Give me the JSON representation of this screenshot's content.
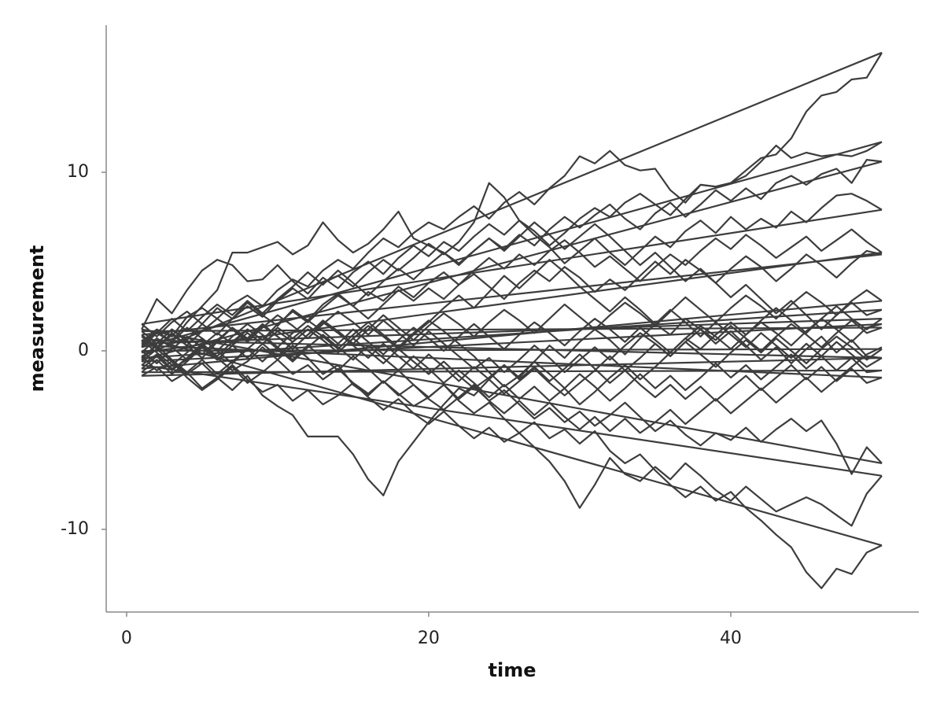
{
  "chart_data": {
    "type": "line",
    "x_label": "time",
    "y_label": "measurement",
    "color": "#3d3d3d",
    "xlim": [
      -1.35,
      52.45
    ],
    "xticks": [
      0,
      20,
      40
    ],
    "ylim": [
      -14.63,
      18.24
    ],
    "yticks": [
      -10,
      0,
      10
    ],
    "x": [
      1,
      2,
      3,
      4,
      5,
      6,
      7,
      8,
      9,
      10,
      11,
      12,
      13,
      14,
      15,
      16,
      17,
      18,
      19,
      20,
      21,
      22,
      23,
      24,
      25,
      26,
      27,
      28,
      29,
      30,
      31,
      32,
      33,
      34,
      35,
      36,
      37,
      38,
      39,
      40,
      41,
      42,
      43,
      44,
      45,
      46,
      47,
      48,
      49,
      50
    ],
    "series": [
      {
        "values": [
          0.5,
          1.2,
          0.8,
          1.9,
          2.4,
          1.8,
          2.6,
          3.1,
          2.5,
          3.4,
          4.0,
          3.6,
          4.5,
          5.1,
          4.6,
          5.5,
          6.3,
          5.8,
          6.6,
          7.2,
          6.8,
          7.5,
          8.1,
          7.4,
          8.3,
          8.9,
          8.2,
          9.1,
          9.8,
          10.9,
          10.5,
          11.2,
          10.4,
          10.1,
          10.2,
          9.0,
          8.3,
          9.3,
          9.2,
          9.4,
          10.1,
          10.8,
          11.0,
          11.9,
          13.4,
          14.3,
          14.5,
          15.2,
          15.3,
          16.7
        ]
      },
      {
        "values": [
          -0.3,
          -1.1,
          -0.6,
          -1.5,
          -2.2,
          -1.6,
          -0.9,
          -1.8,
          -1.2,
          -0.5,
          0.3,
          -0.4,
          -1.3,
          -0.8,
          -1.9,
          -2.5,
          -1.7,
          -2.4,
          -3.1,
          -2.6,
          -1.9,
          -2.8,
          -3.5,
          -2.9,
          -3.8,
          -4.6,
          -4.0,
          -4.9,
          -4.4,
          -5.2,
          -4.5,
          -5.6,
          -6.3,
          -5.8,
          -6.7,
          -7.5,
          -8.2,
          -7.6,
          -8.4,
          -7.9,
          -8.8,
          -9.5,
          -10.3,
          -11.0,
          -12.4,
          -13.3,
          -12.2,
          -12.5,
          -11.3,
          -10.9
        ]
      },
      {
        "values": [
          0.8,
          0.1,
          -0.6,
          -1.3,
          -0.7,
          -1.5,
          -2.2,
          -1.4,
          -2.5,
          -3.1,
          -3.6,
          -4.8,
          -4.8,
          -4.8,
          -5.8,
          -7.2,
          -8.1,
          -6.2,
          -5.1,
          -4.0,
          -3.0,
          -2.1,
          -2.5,
          -1.6,
          -0.8,
          -1.5,
          -0.6,
          0.3,
          -0.4,
          0.5,
          1.2,
          0.6,
          -0.2,
          0.7,
          1.5,
          0.9,
          1.8,
          1.2,
          0.4,
          1.1,
          0.3,
          -0.5,
          0.2,
          -0.7,
          0.1,
          0.8,
          -0.1,
          0.6,
          -0.3,
          -0.4
        ]
      },
      {
        "values": [
          -1.4,
          -0.9,
          -1.7,
          -1.2,
          -2.1,
          -1.5,
          -0.8,
          -1.6,
          -2.3,
          -1.9,
          -2.8,
          -2.2,
          -3.0,
          -2.5,
          -1.8,
          -2.6,
          -3.3,
          -2.7,
          -3.5,
          -4.1,
          -3.4,
          -4.2,
          -4.9,
          -4.3,
          -5.1,
          -4.6,
          -5.4,
          -6.2,
          -7.3,
          -8.8,
          -7.5,
          -6.0,
          -6.9,
          -7.3,
          -6.5,
          -7.2,
          -6.3,
          -7.0,
          -7.8,
          -8.4,
          -7.6,
          -8.3,
          -9.0,
          -8.6,
          -8.2,
          -8.6,
          -9.2,
          -9.8,
          -8.0,
          -7.0
        ]
      },
      {
        "values": [
          -0.8,
          -0.2,
          -1.0,
          -0.5,
          0.3,
          -0.4,
          -1.1,
          -0.6,
          0.2,
          -0.5,
          -1.3,
          -0.8,
          -1.6,
          -1.0,
          -1.8,
          -2.4,
          -1.7,
          -2.5,
          -1.9,
          -2.7,
          -3.3,
          -2.6,
          -1.9,
          -2.8,
          -2.2,
          -3.0,
          -3.8,
          -3.2,
          -4.0,
          -3.4,
          -4.2,
          -3.6,
          -2.9,
          -3.7,
          -4.5,
          -3.9,
          -4.7,
          -5.3,
          -4.6,
          -5.0,
          -4.3,
          -5.1,
          -4.4,
          -3.8,
          -4.5,
          -3.9,
          -5.2,
          -6.9,
          -5.4,
          -6.3
        ]
      },
      {
        "values": [
          1.2,
          2.9,
          2.1,
          3.4,
          4.5,
          5.1,
          4.8,
          3.9,
          4.0,
          4.8,
          3.9,
          3.2,
          4.1,
          3.5,
          4.4,
          5.0,
          4.3,
          5.2,
          5.9,
          5.3,
          6.1,
          5.6,
          6.4,
          7.1,
          6.5,
          7.3,
          6.7,
          5.9,
          6.6,
          7.4,
          8.0,
          7.5,
          8.3,
          8.8,
          8.2,
          7.6,
          8.5,
          9.3,
          9.2,
          9.4,
          9.8,
          10.6,
          11.5,
          10.8,
          11.1,
          10.9,
          11.0,
          10.9,
          11.2,
          11.7
        ]
      },
      {
        "values": [
          0.2,
          1.0,
          0.5,
          1.6,
          2.5,
          3.4,
          5.5,
          5.5,
          5.8,
          6.1,
          5.4,
          5.9,
          7.2,
          6.2,
          5.5,
          6.0,
          6.8,
          7.8,
          6.3,
          5.9,
          5.5,
          4.9,
          5.6,
          6.3,
          5.7,
          6.5,
          5.9,
          6.8,
          7.5,
          6.9,
          7.6,
          8.2,
          7.4,
          6.8,
          7.7,
          8.3,
          7.5,
          8.2,
          9.0,
          8.4,
          9.1,
          8.5,
          9.4,
          9.8,
          9.3,
          9.9,
          10.2,
          9.4,
          10.7,
          10.6
        ]
      },
      {
        "values": [
          -0.5,
          0.4,
          1.2,
          0.6,
          1.5,
          0.9,
          1.8,
          2.5,
          1.9,
          2.8,
          3.5,
          2.9,
          3.8,
          4.2,
          3.6,
          4.4,
          5.1,
          4.5,
          5.2,
          6.0,
          5.4,
          6.1,
          7.2,
          9.4,
          8.6,
          7.3,
          6.5,
          5.8,
          4.9,
          5.6,
          6.3,
          5.5,
          4.8,
          5.6,
          6.4,
          5.8,
          6.7,
          7.3,
          6.6,
          7.5,
          6.8,
          7.4,
          6.9,
          7.8,
          7.2,
          8.0,
          8.7,
          8.8,
          8.4,
          7.9
        ]
      },
      {
        "values": [
          1.5,
          0.8,
          1.6,
          2.2,
          1.5,
          2.4,
          1.8,
          2.7,
          2.0,
          1.4,
          2.3,
          1.7,
          2.6,
          3.2,
          2.5,
          3.3,
          2.8,
          3.6,
          3.0,
          3.8,
          4.4,
          3.7,
          4.5,
          5.2,
          4.6,
          5.4,
          4.8,
          5.6,
          6.2,
          5.5,
          4.7,
          5.3,
          4.6,
          3.9,
          4.7,
          5.4,
          4.8,
          5.6,
          6.3,
          5.7,
          6.5,
          5.9,
          5.2,
          5.8,
          6.4,
          5.6,
          6.2,
          6.8,
          6.1,
          5.5
        ]
      },
      {
        "values": [
          -0.1,
          0.7,
          0.2,
          -0.5,
          0.3,
          1.0,
          0.4,
          1.2,
          0.6,
          1.5,
          2.2,
          1.6,
          2.4,
          3.1,
          2.5,
          1.8,
          2.6,
          3.4,
          2.8,
          3.5,
          2.9,
          3.7,
          4.3,
          3.6,
          2.9,
          3.8,
          4.5,
          3.9,
          4.7,
          4.1,
          3.3,
          4.0,
          3.4,
          4.2,
          5.0,
          4.3,
          5.1,
          4.5,
          3.8,
          4.6,
          5.3,
          4.7,
          3.9,
          4.6,
          5.4,
          4.8,
          4.1,
          4.9,
          5.6,
          5.4
        ]
      },
      {
        "values": [
          0.9,
          0.2,
          1.0,
          0.3,
          -0.4,
          0.5,
          1.3,
          0.6,
          1.4,
          0.8,
          0.1,
          0.9,
          1.7,
          1.1,
          0.4,
          1.2,
          2.0,
          1.3,
          0.6,
          1.4,
          2.1,
          1.5,
          0.8,
          1.6,
          2.3,
          1.7,
          1.0,
          1.8,
          2.6,
          1.9,
          1.2,
          2.0,
          2.7,
          2.1,
          1.4,
          2.2,
          3.0,
          2.3,
          1.6,
          2.4,
          3.1,
          2.5,
          1.8,
          2.6,
          3.3,
          2.7,
          2.0,
          2.8,
          3.4,
          2.8
        ]
      },
      {
        "values": [
          -1.0,
          -0.3,
          -1.1,
          -0.4,
          0.4,
          -0.3,
          0.5,
          1.2,
          0.6,
          1.3,
          0.7,
          1.4,
          0.8,
          0.1,
          0.9,
          1.6,
          0.9,
          0.2,
          1.0,
          1.7,
          1.1,
          0.4,
          -0.3,
          -1.2,
          -2.0,
          -1.4,
          -0.6,
          -1.3,
          -2.1,
          -3.0,
          -2.3,
          -1.5,
          -0.8,
          -1.6,
          -0.9,
          -0.1,
          0.7,
          0.1,
          0.9,
          1.6,
          0.9,
          1.7,
          2.4,
          1.7,
          1.0,
          1.8,
          2.5,
          1.8,
          1.2,
          1.8
        ]
      },
      {
        "values": [
          0.4,
          1.1,
          0.5,
          1.3,
          0.7,
          0.0,
          0.8,
          1.5,
          0.9,
          0.2,
          1.0,
          1.7,
          1.1,
          0.4,
          1.2,
          0.5,
          -0.2,
          0.6,
          1.3,
          0.7,
          0.0,
          0.8,
          1.5,
          0.8,
          0.1,
          0.9,
          1.6,
          1.0,
          0.3,
          1.1,
          1.8,
          1.2,
          0.5,
          1.3,
          0.6,
          -0.1,
          0.7,
          1.4,
          0.8,
          0.1,
          0.9,
          1.6,
          1.0,
          0.3,
          1.1,
          1.8,
          1.2,
          0.5,
          1.3,
          1.5
        ]
      },
      {
        "values": [
          -0.6,
          0.1,
          0.9,
          0.3,
          1.1,
          1.8,
          1.2,
          0.5,
          1.3,
          2.0,
          1.4,
          0.7,
          1.5,
          2.2,
          1.6,
          0.9,
          1.7,
          1.0,
          0.3,
          1.1,
          0.4,
          -0.3,
          -1.0,
          -0.4,
          -1.2,
          -0.5,
          0.3,
          -0.4,
          -1.2,
          -0.5,
          0.2,
          -0.5,
          0.3,
          1.0,
          0.4,
          -0.3,
          0.5,
          1.2,
          0.6,
          1.4,
          0.7,
          0.0,
          0.8,
          1.5,
          0.9,
          0.2,
          1.0,
          1.7,
          1.0,
          1.3
        ]
      },
      {
        "values": [
          1.1,
          0.4,
          1.2,
          0.5,
          -0.2,
          0.6,
          1.3,
          0.7,
          1.5,
          0.8,
          0.1,
          0.9,
          1.6,
          1.0,
          0.3,
          -0.4,
          0.4,
          -0.3,
          -1.0,
          -0.2,
          -0.9,
          -1.7,
          -0.9,
          -1.6,
          -2.4,
          -1.7,
          -1.0,
          -1.8,
          -2.5,
          -1.8,
          -1.1,
          -0.3,
          -1.1,
          -0.4,
          0.4,
          -0.3,
          0.5,
          -0.2,
          -0.9,
          -0.1,
          0.6,
          -0.1,
          0.7,
          0.0,
          -0.7,
          0.1,
          0.8,
          0.2,
          -0.5,
          0.1
        ]
      },
      {
        "values": [
          0.0,
          -0.7,
          0.1,
          0.8,
          0.2,
          -0.5,
          0.3,
          1.0,
          0.4,
          -0.3,
          0.5,
          1.2,
          0.6,
          -0.1,
          0.7,
          1.4,
          0.8,
          0.1,
          0.9,
          1.6,
          2.4,
          3.1,
          2.4,
          3.3,
          4.2,
          3.5,
          4.3,
          5.1,
          4.4,
          3.6,
          2.9,
          2.2,
          3.0,
          2.3,
          1.5,
          2.3,
          1.6,
          0.8,
          1.6,
          0.9,
          0.2,
          1.0,
          0.3,
          -0.4,
          0.4,
          -0.3,
          0.5,
          -0.2,
          -0.9,
          -0.4
        ]
      },
      {
        "values": [
          0.6,
          -0.1,
          -0.8,
          -0.1,
          0.7,
          0.0,
          -0.7,
          0.1,
          0.8,
          0.1,
          -0.6,
          0.2,
          0.9,
          0.2,
          -0.5,
          0.3,
          -0.4,
          -1.1,
          -0.3,
          -1.0,
          -1.8,
          -1.1,
          -1.8,
          -2.6,
          -1.9,
          -2.7,
          -2.0,
          -2.8,
          -2.1,
          -1.3,
          -2.0,
          -2.8,
          -2.1,
          -1.3,
          -2.1,
          -1.4,
          -2.2,
          -1.5,
          -0.7,
          -1.5,
          -0.8,
          -1.6,
          -0.9,
          -0.2,
          -1.0,
          -0.3,
          -1.1,
          -0.4,
          -1.2,
          -1.1
        ]
      },
      {
        "values": [
          -1.2,
          -0.5,
          -1.3,
          -0.6,
          0.2,
          -0.5,
          0.3,
          -0.4,
          0.4,
          1.1,
          0.5,
          1.2,
          0.6,
          -0.1,
          0.7,
          0.0,
          -0.7,
          0.1,
          -0.6,
          -1.3,
          -0.6,
          -1.4,
          -2.1,
          -1.5,
          -0.8,
          -1.6,
          -0.9,
          -1.7,
          -1.0,
          -0.2,
          -1.0,
          -1.8,
          -1.1,
          -1.9,
          -2.6,
          -1.9,
          -2.7,
          -2.0,
          -2.8,
          -2.1,
          -1.4,
          -2.2,
          -1.5,
          -0.8,
          -1.6,
          -0.9,
          -1.7,
          -1.0,
          -1.8,
          -1.5
        ]
      },
      {
        "values": [
          0.3,
          1.0,
          1.8,
          1.1,
          1.9,
          2.6,
          2.0,
          2.8,
          2.1,
          2.9,
          3.6,
          4.4,
          3.7,
          4.5,
          3.8,
          3.1,
          3.9,
          4.6,
          4.0,
          4.8,
          5.5,
          4.8,
          5.6,
          6.3,
          5.6,
          6.4,
          7.2,
          6.5,
          5.7,
          6.4,
          7.1,
          6.4,
          5.6,
          4.8,
          5.5,
          4.7,
          3.9,
          4.6,
          3.8,
          3.0,
          3.7,
          2.9,
          2.1,
          2.8,
          2.0,
          1.2,
          2.0,
          2.7,
          2.0,
          2.3
        ]
      },
      {
        "values": [
          -0.4,
          0.3,
          -0.5,
          -1.2,
          -0.5,
          -1.3,
          -0.6,
          0.1,
          -0.6,
          0.2,
          -0.5,
          0.3,
          -0.4,
          -1.1,
          -0.3,
          -1.0,
          -1.8,
          -1.1,
          -1.9,
          -2.6,
          -1.9,
          -2.7,
          -2.0,
          -2.8,
          -3.5,
          -2.8,
          -3.6,
          -2.9,
          -3.7,
          -4.4,
          -3.7,
          -4.5,
          -3.8,
          -4.6,
          -4.0,
          -3.3,
          -4.1,
          -3.4,
          -2.7,
          -3.5,
          -2.8,
          -2.1,
          -2.9,
          -2.2,
          -1.5,
          -2.3,
          -1.6,
          -0.9,
          -0.2,
          0.2
        ]
      }
    ]
  }
}
